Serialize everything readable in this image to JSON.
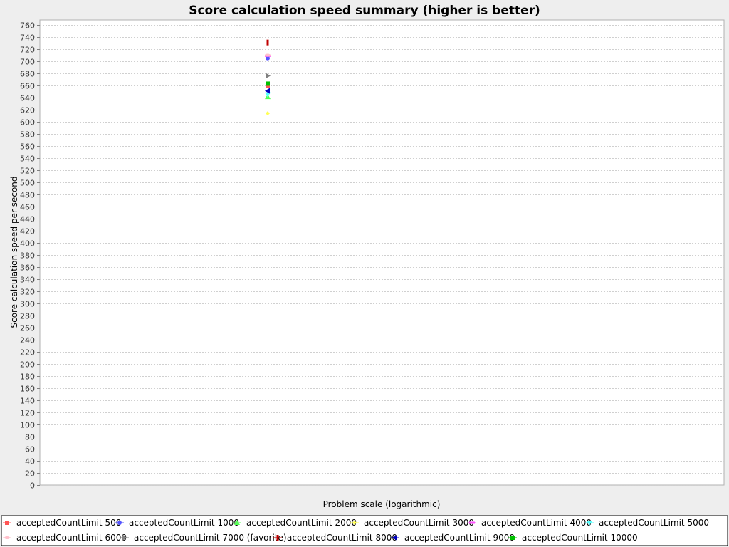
{
  "chart_data": {
    "type": "scatter",
    "title": "Score calculation speed summary (higher is better)",
    "xlabel": "Problem scale (logarithmic)",
    "ylabel": "Score calculation speed per second",
    "ylim": [
      0,
      760
    ],
    "ytick_step": 20,
    "x_scale": "log",
    "grid": true,
    "legend_position": "bottom",
    "series": [
      {
        "name": "acceptedCountLimit 500",
        "color": "#ff5555",
        "marker": "square",
        "points": [
          {
            "x": 1,
            "y": 660
          }
        ]
      },
      {
        "name": "acceptedCountLimit 1000",
        "color": "#5555ff",
        "marker": "circle",
        "points": [
          {
            "x": 1,
            "y": 705
          }
        ]
      },
      {
        "name": "acceptedCountLimit 2000",
        "color": "#55ff55",
        "marker": "triangle-up",
        "points": [
          {
            "x": 1,
            "y": 641
          }
        ]
      },
      {
        "name": "acceptedCountLimit 3000",
        "color": "#ffff55",
        "marker": "diamond",
        "points": [
          {
            "x": 1,
            "y": 614
          }
        ]
      },
      {
        "name": "acceptedCountLimit 4000",
        "color": "#ff55ff",
        "marker": "rect-h",
        "points": [
          {
            "x": 1,
            "y": 709
          }
        ]
      },
      {
        "name": "acceptedCountLimit 5000",
        "color": "#55ffff",
        "marker": "triangle-down",
        "points": [
          {
            "x": 1,
            "y": 645
          }
        ]
      },
      {
        "name": "acceptedCountLimit 6000",
        "color": "#ffc0cb",
        "marker": "ellipse-h",
        "points": [
          {
            "x": 1,
            "y": 710
          }
        ]
      },
      {
        "name": "acceptedCountLimit 7000 (favorite)",
        "color": "#808080",
        "marker": "triangle-right",
        "points": [
          {
            "x": 1,
            "y": 676
          }
        ]
      },
      {
        "name": "acceptedCountLimit 8000",
        "color": "#c00000",
        "marker": "rect-v",
        "points": [
          {
            "x": 1,
            "y": 731
          }
        ]
      },
      {
        "name": "acceptedCountLimit 9000",
        "color": "#0000c0",
        "marker": "triangle-left",
        "points": [
          {
            "x": 1,
            "y": 651
          }
        ]
      },
      {
        "name": "acceptedCountLimit 10000",
        "color": "#00c000",
        "marker": "square",
        "points": [
          {
            "x": 1,
            "y": 663
          }
        ]
      }
    ]
  }
}
